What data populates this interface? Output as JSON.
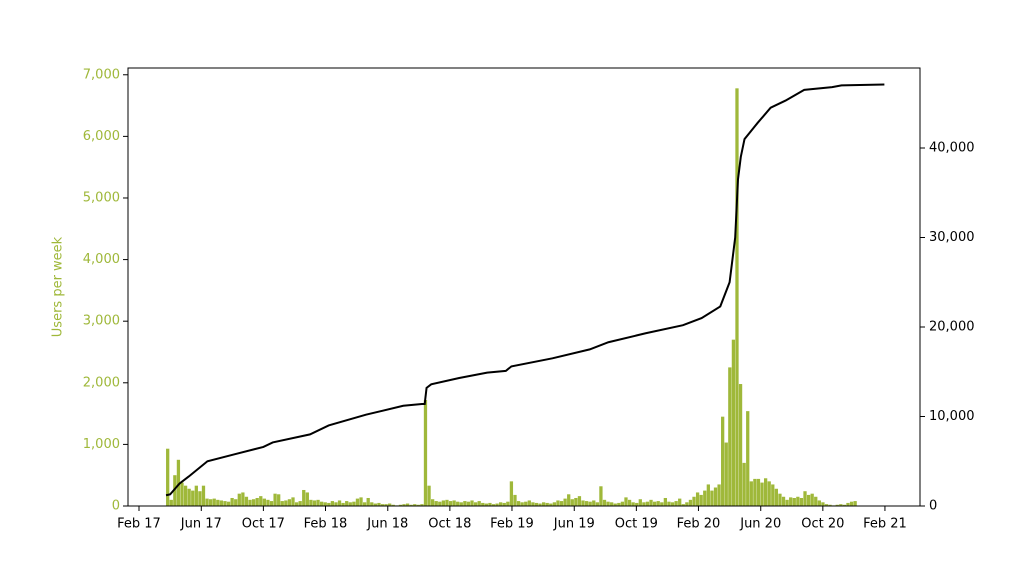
{
  "chart_data": {
    "type": "histogram",
    "ylabel": "Users per week",
    "color": "#9fb83a",
    "bins": [
      2017.228,
      2017.2472,
      2017.2664,
      2017.2856,
      2017.3048,
      2017.324,
      2017.3432,
      2017.3624,
      2017.3816,
      2017.4008,
      2017.42,
      2017.4392,
      2017.4584,
      2017.4776,
      2017.4968,
      2017.516,
      2017.5352,
      2017.5544,
      2017.5736,
      2017.5928,
      2017.612,
      2017.6312,
      2017.6504,
      2017.6696,
      2017.6888,
      2017.708,
      2017.7272,
      2017.7464,
      2017.7656,
      2017.7848,
      2017.804,
      2017.8232,
      2017.8424,
      2017.8616,
      2017.8808,
      2017.9,
      2017.9192,
      2017.9384,
      2017.9576,
      2017.9768,
      2017.996,
      2018.0152,
      2018.0344,
      2018.0536,
      2018.0728,
      2018.092,
      2018.1112,
      2018.1304,
      2018.1496,
      2018.1688,
      2018.188,
      2018.2072,
      2018.2264,
      2018.2456,
      2018.2648,
      2018.284,
      2018.3032,
      2018.3224,
      2018.3416,
      2018.3608,
      2018.38,
      2018.3992,
      2018.4184,
      2018.4376,
      2018.4568,
      2018.476,
      2018.4952,
      2018.5144,
      2018.5336,
      2018.5528,
      2018.572,
      2018.5912,
      2018.6104,
      2018.6296,
      2018.6488,
      2018.668,
      2018.6872,
      2018.7064,
      2018.7256,
      2018.7448,
      2018.764,
      2018.7832,
      2018.8024,
      2018.8216,
      2018.8408,
      2018.86,
      2018.8792,
      2018.8984,
      2018.9176,
      2018.9368,
      2018.956,
      2018.9752,
      2018.9944,
      2019.0136,
      2019.0328,
      2019.052,
      2019.0712,
      2019.0904,
      2019.1096,
      2019.1288,
      2019.148,
      2019.1672,
      2019.1864,
      2019.2056,
      2019.2248,
      2019.244,
      2019.2632,
      2019.2824,
      2019.3016,
      2019.3208,
      2019.34,
      2019.3592,
      2019.3784,
      2019.3976,
      2019.4168,
      2019.436,
      2019.4552,
      2019.4744,
      2019.4936,
      2019.5128,
      2019.532,
      2019.5512,
      2019.5704,
      2019.5896,
      2019.6088,
      2019.628,
      2019.6472,
      2019.6664,
      2019.6856,
      2019.7048,
      2019.724,
      2019.7432,
      2019.7624,
      2019.7816,
      2019.8008,
      2019.82,
      2019.8392,
      2019.8584,
      2019.8776,
      2019.8968,
      2019.916,
      2019.9352,
      2019.9544,
      2019.9736,
      2019.9928,
      2020.012,
      2020.0312,
      2020.0504,
      2020.0696,
      2020.0888,
      2020.108,
      2020.1272,
      2020.1464,
      2020.1656,
      2020.1848,
      2020.204,
      2020.2232,
      2020.2424,
      2020.2616,
      2020.2808,
      2020.3,
      2020.3192,
      2020.3384,
      2020.3576,
      2020.3768,
      2020.396,
      2020.4152,
      2020.4344,
      2020.4536,
      2020.4728,
      2020.492,
      2020.5112,
      2020.5304,
      2020.5496,
      2020.5688,
      2020.588,
      2020.6072,
      2020.6264,
      2020.6456,
      2020.6648,
      2020.684,
      2020.7032,
      2020.7224,
      2020.7416,
      2020.7608,
      2020.78,
      2020.7992,
      2020.8184,
      2020.8376,
      2020.8568,
      2020.876,
      2020.8952,
      2020.9144,
      2020.9336
    ],
    "values": [
      930,
      100,
      500,
      750,
      380,
      330,
      280,
      250,
      330,
      240,
      330,
      120,
      110,
      120,
      100,
      90,
      80,
      70,
      130,
      110,
      200,
      220,
      150,
      100,
      110,
      130,
      160,
      120,
      100,
      80,
      200,
      190,
      80,
      90,
      110,
      140,
      60,
      80,
      260,
      220,
      100,
      90,
      100,
      70,
      60,
      50,
      80,
      60,
      90,
      50,
      80,
      60,
      70,
      120,
      140,
      60,
      130,
      60,
      40,
      50,
      30,
      30,
      40,
      20,
      10,
      20,
      30,
      40,
      20,
      30,
      20,
      30,
      1720,
      330,
      110,
      80,
      70,
      90,
      100,
      80,
      90,
      70,
      60,
      80,
      70,
      90,
      60,
      80,
      50,
      40,
      50,
      30,
      40,
      60,
      50,
      70,
      400,
      180,
      80,
      60,
      70,
      90,
      60,
      50,
      40,
      60,
      50,
      40,
      60,
      90,
      80,
      120,
      190,
      110,
      130,
      160,
      90,
      80,
      70,
      90,
      60,
      320,
      100,
      70,
      60,
      40,
      50,
      70,
      140,
      100,
      60,
      50,
      110,
      60,
      70,
      100,
      70,
      80,
      60,
      130,
      70,
      60,
      80,
      120,
      30,
      60,
      100,
      150,
      220,
      180,
      250,
      350,
      250,
      300,
      350,
      1450,
      1030,
      2250,
      2700,
      6780,
      1980,
      700,
      1540,
      400,
      440,
      440,
      380,
      450,
      400,
      350,
      280,
      200,
      150,
      100,
      140,
      130,
      150,
      130,
      240,
      180,
      200,
      150,
      90,
      60,
      30,
      20,
      10,
      20,
      30,
      20,
      50,
      70,
      80
    ],
    "line": {
      "type": "line",
      "color": "#000000",
      "axis": "y2",
      "x": [
        2017.228,
        2017.25,
        2017.3,
        2017.35,
        2017.45,
        2017.6,
        2017.75,
        2017.8,
        2018.0,
        2018.1,
        2018.3,
        2018.5,
        2018.6,
        2018.615,
        2018.625,
        2018.65,
        2018.8,
        2018.95,
        2019.05,
        2019.08,
        2019.3,
        2019.5,
        2019.6,
        2019.8,
        2020.0,
        2020.1,
        2020.2,
        2020.25,
        2020.28,
        2020.295,
        2020.31,
        2020.33,
        2020.4,
        2020.47,
        2020.55,
        2020.65,
        2020.8,
        2020.85,
        2021.08
      ],
      "values": [
        1200,
        1300,
        2500,
        3300,
        5000,
        5800,
        6600,
        7100,
        8000,
        9000,
        10200,
        11200,
        11400,
        11400,
        13200,
        13600,
        14300,
        14900,
        15100,
        15600,
        16500,
        17500,
        18300,
        19300,
        20200,
        21000,
        22300,
        25000,
        30000,
        36500,
        39000,
        41000,
        42800,
        44500,
        45300,
        46500,
        46800,
        47000,
        47100
      ]
    },
    "xlim": [
      2017.024,
      2021.271
    ],
    "xticks": [
      {
        "value": 2017.083,
        "label": "Feb 17"
      },
      {
        "value": 2017.417,
        "label": "Jun 17"
      },
      {
        "value": 2017.75,
        "label": "Oct 17"
      },
      {
        "value": 2018.083,
        "label": "Feb 18"
      },
      {
        "value": 2018.417,
        "label": "Jun 18"
      },
      {
        "value": 2018.75,
        "label": "Oct 18"
      },
      {
        "value": 2019.083,
        "label": "Feb 19"
      },
      {
        "value": 2019.417,
        "label": "Jun 19"
      },
      {
        "value": 2019.75,
        "label": "Oct 19"
      },
      {
        "value": 2020.083,
        "label": "Feb 20"
      },
      {
        "value": 2020.417,
        "label": "Jun 20"
      },
      {
        "value": 2020.75,
        "label": "Oct 20"
      },
      {
        "value": 2021.083,
        "label": "Feb 21"
      }
    ],
    "ylim": [
      0,
      7110
    ],
    "yticks": [
      0,
      {
        "value": 1000,
        "label": "1,000"
      },
      {
        "value": 2000,
        "label": "2,000"
      },
      {
        "value": 3000,
        "label": "3,000"
      },
      {
        "value": 4000,
        "label": "4,000"
      },
      {
        "value": 5000,
        "label": "5,000"
      },
      {
        "value": 6000,
        "label": "6,000"
      },
      {
        "value": 7000,
        "label": "7,000"
      }
    ],
    "y2lim": [
      0,
      48940
    ],
    "y2ticks": [
      0,
      {
        "value": 10000,
        "label": "10,000"
      },
      {
        "value": 20000,
        "label": "20,000"
      },
      {
        "value": 30000,
        "label": "30,000"
      },
      {
        "value": 40000,
        "label": "40,000"
      }
    ]
  }
}
